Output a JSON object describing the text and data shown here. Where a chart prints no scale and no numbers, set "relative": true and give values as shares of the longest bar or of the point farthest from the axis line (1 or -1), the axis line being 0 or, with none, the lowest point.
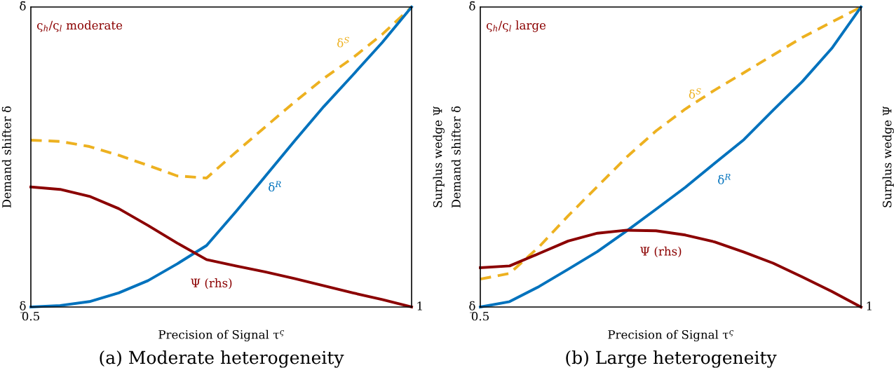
{
  "chart_data": [
    {
      "type": "line",
      "relative": true,
      "title": "(a) Moderate heterogeneity",
      "xlabel": "Precision of Signal τ$^{ς}$",
      "ylabel": "Demand shifter δ",
      "y2label": "Surplus wedge Ψ",
      "annotations": [
        "ς$_{h}$/ς$_{l}$ moderate",
        "δ̄",
        "δ̲",
        "0.5",
        "1"
      ],
      "legend": false,
      "categories": [
        null,
        null,
        null,
        null,
        null,
        null,
        null,
        null,
        null,
        null,
        null,
        null,
        null,
        null
      ],
      "series": [
        {
          "name": "δ$^{S}$",
          "color": "#edb120",
          "line_style": "dashed",
          "values": [
            0.556,
            0.552,
            0.535,
            0.506,
            0.472,
            0.437,
            0.43,
            0.516,
            0.6,
            0.683,
            0.762,
            0.831,
            0.909,
            1
          ]
        },
        {
          "name": "δ$^{R}$",
          "color": "#0072bd",
          "line_style": "solid",
          "values": [
            0,
            0.005,
            0.018,
            0.047,
            0.088,
            0.144,
            0.205,
            0.318,
            0.435,
            0.553,
            0.668,
            0.774,
            0.882,
            1
          ]
        },
        {
          "name": "Ψ (rhs)",
          "color": "#8b0000",
          "line_style": "solid",
          "values": [
            0.4,
            0.392,
            0.369,
            0.328,
            0.272,
            0.213,
            0.158,
            0.137,
            0.117,
            0.095,
            0.071,
            0.047,
            0.025,
            0
          ]
        }
      ]
    },
    {
      "type": "line",
      "relative": true,
      "title": "(b) Large heterogeneity",
      "xlabel": "Precision of Signal τ$^{ς}$",
      "ylabel": "Demand shifter δ",
      "y2label": "Surplus wedge Ψ",
      "annotations": [
        "ς$_{h}$/ς$_{l}$ large",
        "δ̄",
        "δ̲",
        "0.5",
        "1"
      ],
      "legend": false,
      "categories": [
        null,
        null,
        null,
        null,
        null,
        null,
        null,
        null,
        null,
        null,
        null,
        null,
        null,
        null
      ],
      "series": [
        {
          "name": "δ$^{S}$",
          "color": "#edb120",
          "line_style": "dashed",
          "values": [
            0.093,
            0.112,
            0.2,
            0.304,
            0.402,
            0.5,
            0.587,
            0.66,
            0.723,
            0.781,
            0.84,
            0.899,
            0.95,
            1
          ]
        },
        {
          "name": "δ$^{R}$",
          "color": "#0072bd",
          "line_style": "solid",
          "values": [
            0,
            0.018,
            0.068,
            0.126,
            0.185,
            0.254,
            0.326,
            0.399,
            0.479,
            0.558,
            0.656,
            0.752,
            0.862,
            1
          ]
        },
        {
          "name": "Ψ (rhs)",
          "color": "#8b0000",
          "line_style": "solid",
          "values": [
            0.131,
            0.137,
            0.178,
            0.22,
            0.246,
            0.256,
            0.254,
            0.24,
            0.217,
            0.183,
            0.146,
            0.1,
            0.052,
            0
          ]
        }
      ]
    }
  ]
}
